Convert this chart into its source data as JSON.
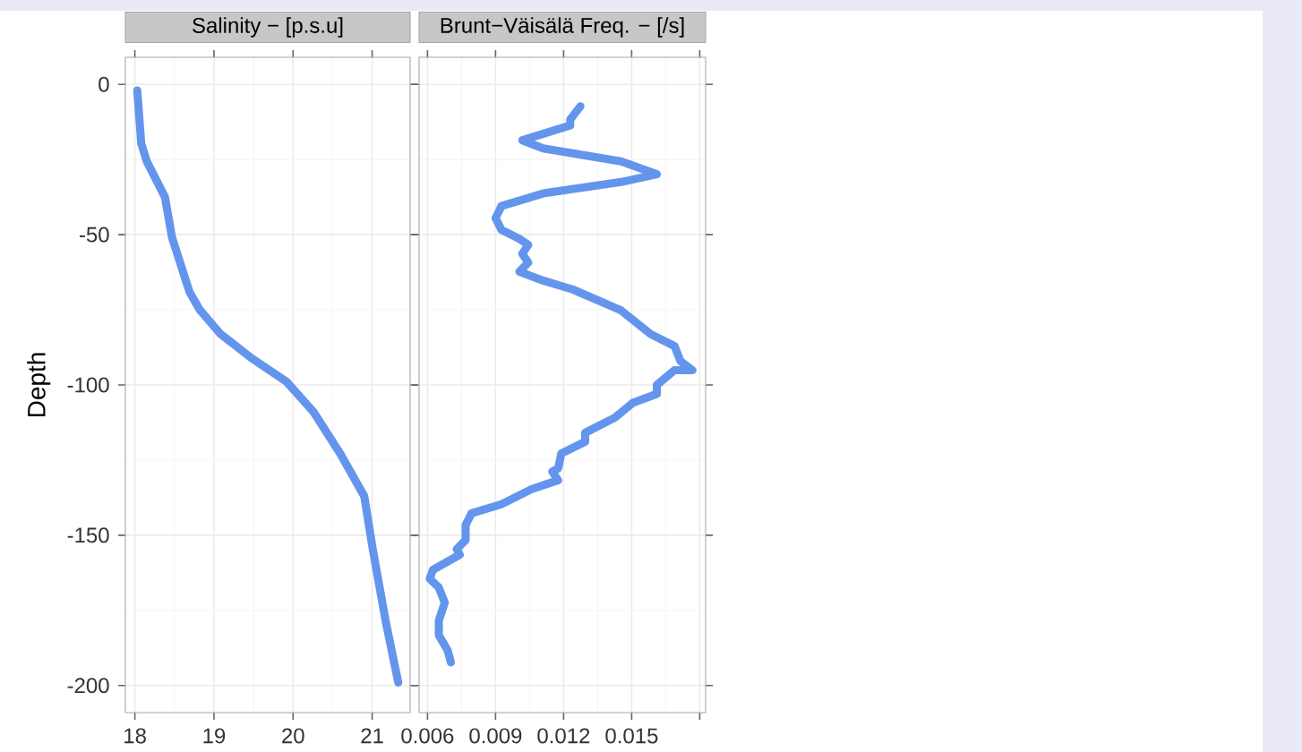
{
  "chart_data": [
    {
      "type": "line",
      "title": "Salinity − [p.s.u]",
      "ylabel": "Depth",
      "grid": true,
      "line_style": "solid",
      "marker": "none",
      "xlim": [
        17.88,
        21.48
      ],
      "xticks": [
        18,
        19,
        20,
        21
      ],
      "ylim": [
        -209,
        9
      ],
      "yticks": [
        -200,
        -150,
        -100,
        -50,
        0
      ],
      "series": [
        {
          "color": "#6495ed",
          "x": [
            18.03,
            18.08,
            18.15,
            18.38,
            18.47,
            18.69,
            18.82,
            19.08,
            19.47,
            19.92,
            20.26,
            20.6,
            20.9,
            21.01,
            21.17,
            21.33
          ],
          "values": [
            -2,
            -19.6,
            -25.6,
            -37.5,
            -51,
            -69,
            -75,
            -83,
            -91,
            -99,
            -109,
            -123,
            -137,
            -155,
            -178.5,
            -199
          ]
        }
      ]
    },
    {
      "type": "line",
      "title": "Brunt−Väisälä Freq. − [/s]",
      "grid": true,
      "line_style": "solid",
      "marker": "none",
      "tick_labels": "x",
      "xlim": [
        0.00563,
        0.01826
      ],
      "xticks": [
        0.006,
        0.009,
        0.012,
        0.015,
        {
          "value": 0.018,
          "label": null
        }
      ],
      "ylim": [
        -209,
        9
      ],
      "yticks": [
        -200,
        -150,
        -100,
        -50,
        0
      ],
      "series": [
        {
          "color": "#6495ed",
          "x": [
            0.01274,
            0.01229,
            0.01229,
            0.01018,
            0.0111,
            0.01453,
            0.01611,
            0.01453,
            0.0111,
            0.00926,
            0.009,
            0.00926,
            0.01005,
            0.01044,
            0.01018,
            0.01044,
            0.01005,
            0.0111,
            0.01242,
            0.01453,
            0.01584,
            0.01689,
            0.01715,
            0.01768,
            0.01689,
            0.01611,
            0.01611,
            0.01505,
            0.01426,
            0.01295,
            0.01295,
            0.0119,
            0.01176,
            0.0115,
            0.01176,
            0.01058,
            0.00926,
            0.00794,
            0.00768,
            0.00768,
            0.00729,
            0.00742,
            0.00624,
            0.0061,
            0.0065,
            0.00676,
            0.0065,
            0.0065,
            0.00689,
            0.00703
          ],
          "values": [
            -7.3,
            -11.7,
            -13.7,
            -18.6,
            -21.3,
            -25.6,
            -29.9,
            -32.5,
            -36.3,
            -40.5,
            -44.5,
            -48.4,
            -51.4,
            -53.4,
            -56.4,
            -59.3,
            -62.3,
            -65.3,
            -68.3,
            -75.2,
            -83.1,
            -87.1,
            -92.1,
            -95.1,
            -95.1,
            -100,
            -103,
            -106,
            -110.9,
            -115.9,
            -118.9,
            -122.8,
            -127.8,
            -128.8,
            -131.7,
            -134.7,
            -139.7,
            -142.7,
            -146.6,
            -151.6,
            -154.6,
            -156.5,
            -161.5,
            -164.5,
            -167.4,
            -172.4,
            -178.4,
            -183.3,
            -188.3,
            -192.3
          ]
        }
      ]
    }
  ]
}
